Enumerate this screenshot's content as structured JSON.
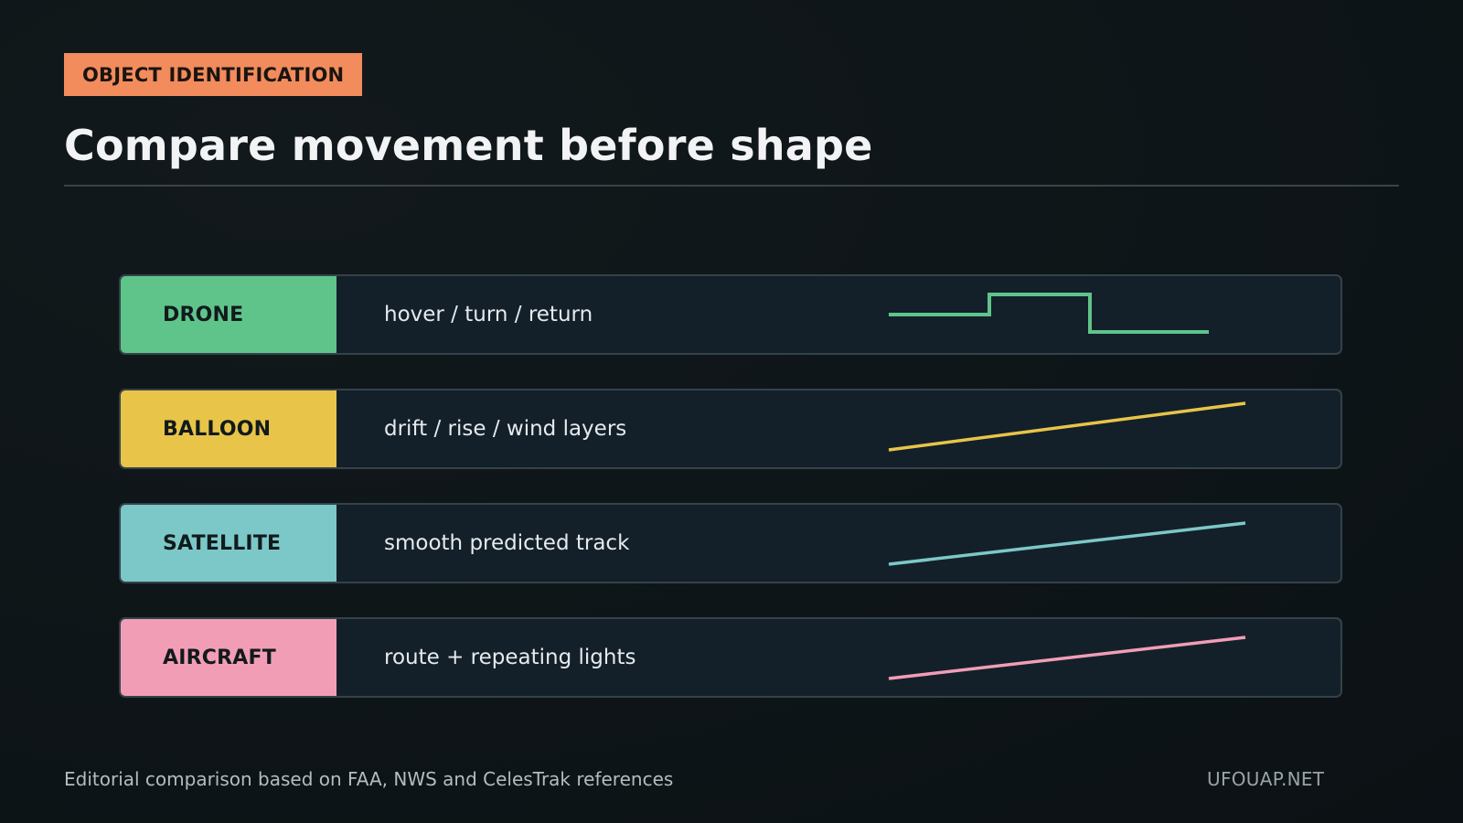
{
  "tag": {
    "label": "OBJECT IDENTIFICATION",
    "color": "#f28c5c"
  },
  "title": "Compare movement before shape",
  "rows": [
    {
      "label": "DRONE",
      "description": "hover / turn / return",
      "color": "#5fc48a",
      "pattern": "step"
    },
    {
      "label": "BALLOON",
      "description": "drift / rise / wind layers",
      "color": "#e8c448",
      "pattern": "rising-line"
    },
    {
      "label": "SATELLITE",
      "description": "smooth predicted track",
      "color": "#7cc8c8",
      "pattern": "rising-line"
    },
    {
      "label": "AIRCRAFT",
      "description": "route + repeating lights",
      "color": "#f29db6",
      "pattern": "rising-line"
    }
  ],
  "footer": {
    "source": "Editorial comparison based on FAA, NWS and CelesTrak references",
    "brand": "UFOUAP.NET"
  }
}
